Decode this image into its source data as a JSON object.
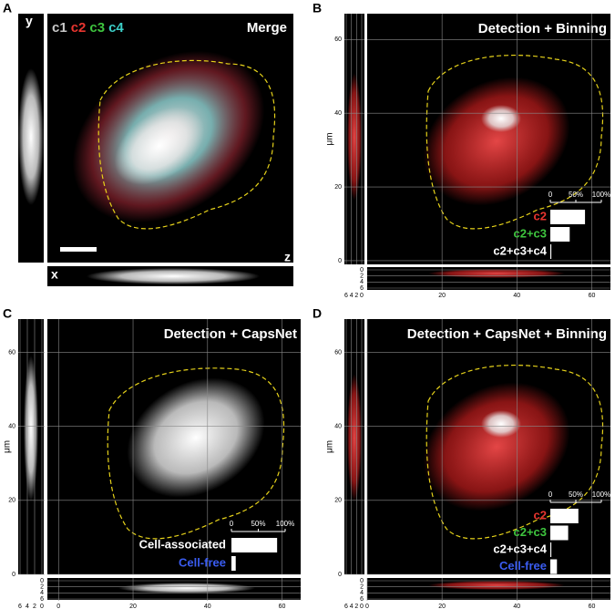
{
  "panels": [
    {
      "label": "A",
      "title": "Merge",
      "channels": [
        {
          "text": "c1",
          "color": "#c8c8c8"
        },
        {
          "text": "c2",
          "color": "#e8352f"
        },
        {
          "text": "c3",
          "color": "#3ec43e"
        },
        {
          "text": "c4",
          "color": "#3ccfc8"
        }
      ],
      "axis_letters": {
        "y": "y",
        "x": "x",
        "z": "z"
      }
    },
    {
      "label": "B",
      "chart_data": {
        "type": "bar",
        "title": "Detection + Binning",
        "ylabel": "μm",
        "xlim": [
          0,
          65
        ],
        "xticks": [
          20,
          40,
          60
        ],
        "ylim": [
          -1,
          67
        ],
        "yticks": [
          0,
          20,
          40,
          60
        ],
        "zlim": [
          0,
          7
        ],
        "zticks": [
          0,
          2,
          4,
          6
        ],
        "grid": true,
        "inset": {
          "xlim": [
            0,
            100
          ],
          "xticks": [
            0,
            {
              "value": 50,
              "label": "50%"
            },
            {
              "value": 100,
              "label": "100%"
            }
          ],
          "categories": [
            "c2",
            "c2+c3",
            "c2+c3+c4"
          ],
          "label_colors": [
            "#e8352f",
            "#3ec43e",
            "#ffffff"
          ],
          "color": "#ffffff",
          "values": [
            68,
            38,
            2
          ]
        }
      }
    },
    {
      "label": "C",
      "chart_data": {
        "type": "bar",
        "title": "Detection + CapsNet",
        "ylabel": "μm",
        "xlim": [
          -3,
          65
        ],
        "xticks": [
          0,
          20,
          40,
          60
        ],
        "ylim": [
          0,
          69
        ],
        "yticks": [
          0,
          20,
          40,
          60
        ],
        "zlim": [
          0,
          7
        ],
        "zticks": [
          0,
          2,
          4,
          6
        ],
        "grid": true,
        "inset": {
          "xlim": [
            0,
            100
          ],
          "xticks": [
            0,
            {
              "value": 50,
              "label": "50%"
            },
            {
              "value": 100,
              "label": "100%"
            }
          ],
          "categories": [
            "Cell-associated",
            "Cell-free"
          ],
          "label_colors": [
            "#ffffff",
            "#3a5cf0"
          ],
          "color": "#ffffff",
          "values": [
            85,
            8
          ]
        }
      }
    },
    {
      "label": "D",
      "chart_data": {
        "type": "bar",
        "title": "Detection + CapsNet + Binning",
        "ylabel": "μm",
        "xlim": [
          0,
          65
        ],
        "xticks": [
          0,
          20,
          40,
          60
        ],
        "ylim": [
          0,
          69
        ],
        "yticks": [
          0,
          20,
          40,
          60
        ],
        "zlim": [
          0,
          7
        ],
        "zticks": [
          0,
          2,
          4,
          6
        ],
        "grid": true,
        "inset": {
          "xlim": [
            0,
            100
          ],
          "xticks": [
            0,
            {
              "value": 50,
              "label": "50%"
            },
            {
              "value": 100,
              "label": "100%"
            }
          ],
          "categories": [
            "c2",
            "c2+c3",
            "c2+c3+c4",
            "Cell-free"
          ],
          "label_colors": [
            "#e8352f",
            "#3ec43e",
            "#ffffff",
            "#3a5cf0"
          ],
          "color": "#ffffff",
          "values": [
            55,
            35,
            2,
            13
          ]
        }
      }
    }
  ]
}
